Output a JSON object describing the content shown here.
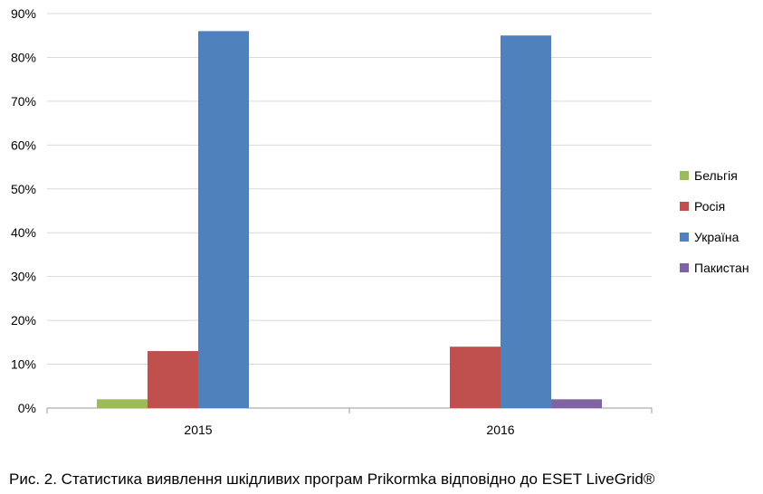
{
  "chart_data": {
    "type": "bar",
    "categories": [
      "2015",
      "2016"
    ],
    "series": [
      {
        "name": "Бельгія",
        "color": "#9bbb59",
        "values": [
          2,
          0
        ]
      },
      {
        "name": "Росія",
        "color": "#c0504d",
        "values": [
          13,
          14
        ]
      },
      {
        "name": "Україна",
        "color": "#4f81bd",
        "values": [
          86,
          85
        ]
      },
      {
        "name": "Пакистан",
        "color": "#8064a2",
        "values": [
          0,
          2
        ]
      }
    ],
    "ylim": [
      0,
      90
    ],
    "yticks": [
      "0%",
      "10%",
      "20%",
      "30%",
      "40%",
      "50%",
      "60%",
      "70%",
      "80%",
      "90%"
    ],
    "grid": true,
    "legend": "right"
  },
  "caption": "Рис. 2. Статистика виявлення шкідливих програм Prikormka відповідно до ESET LiveGrid®"
}
